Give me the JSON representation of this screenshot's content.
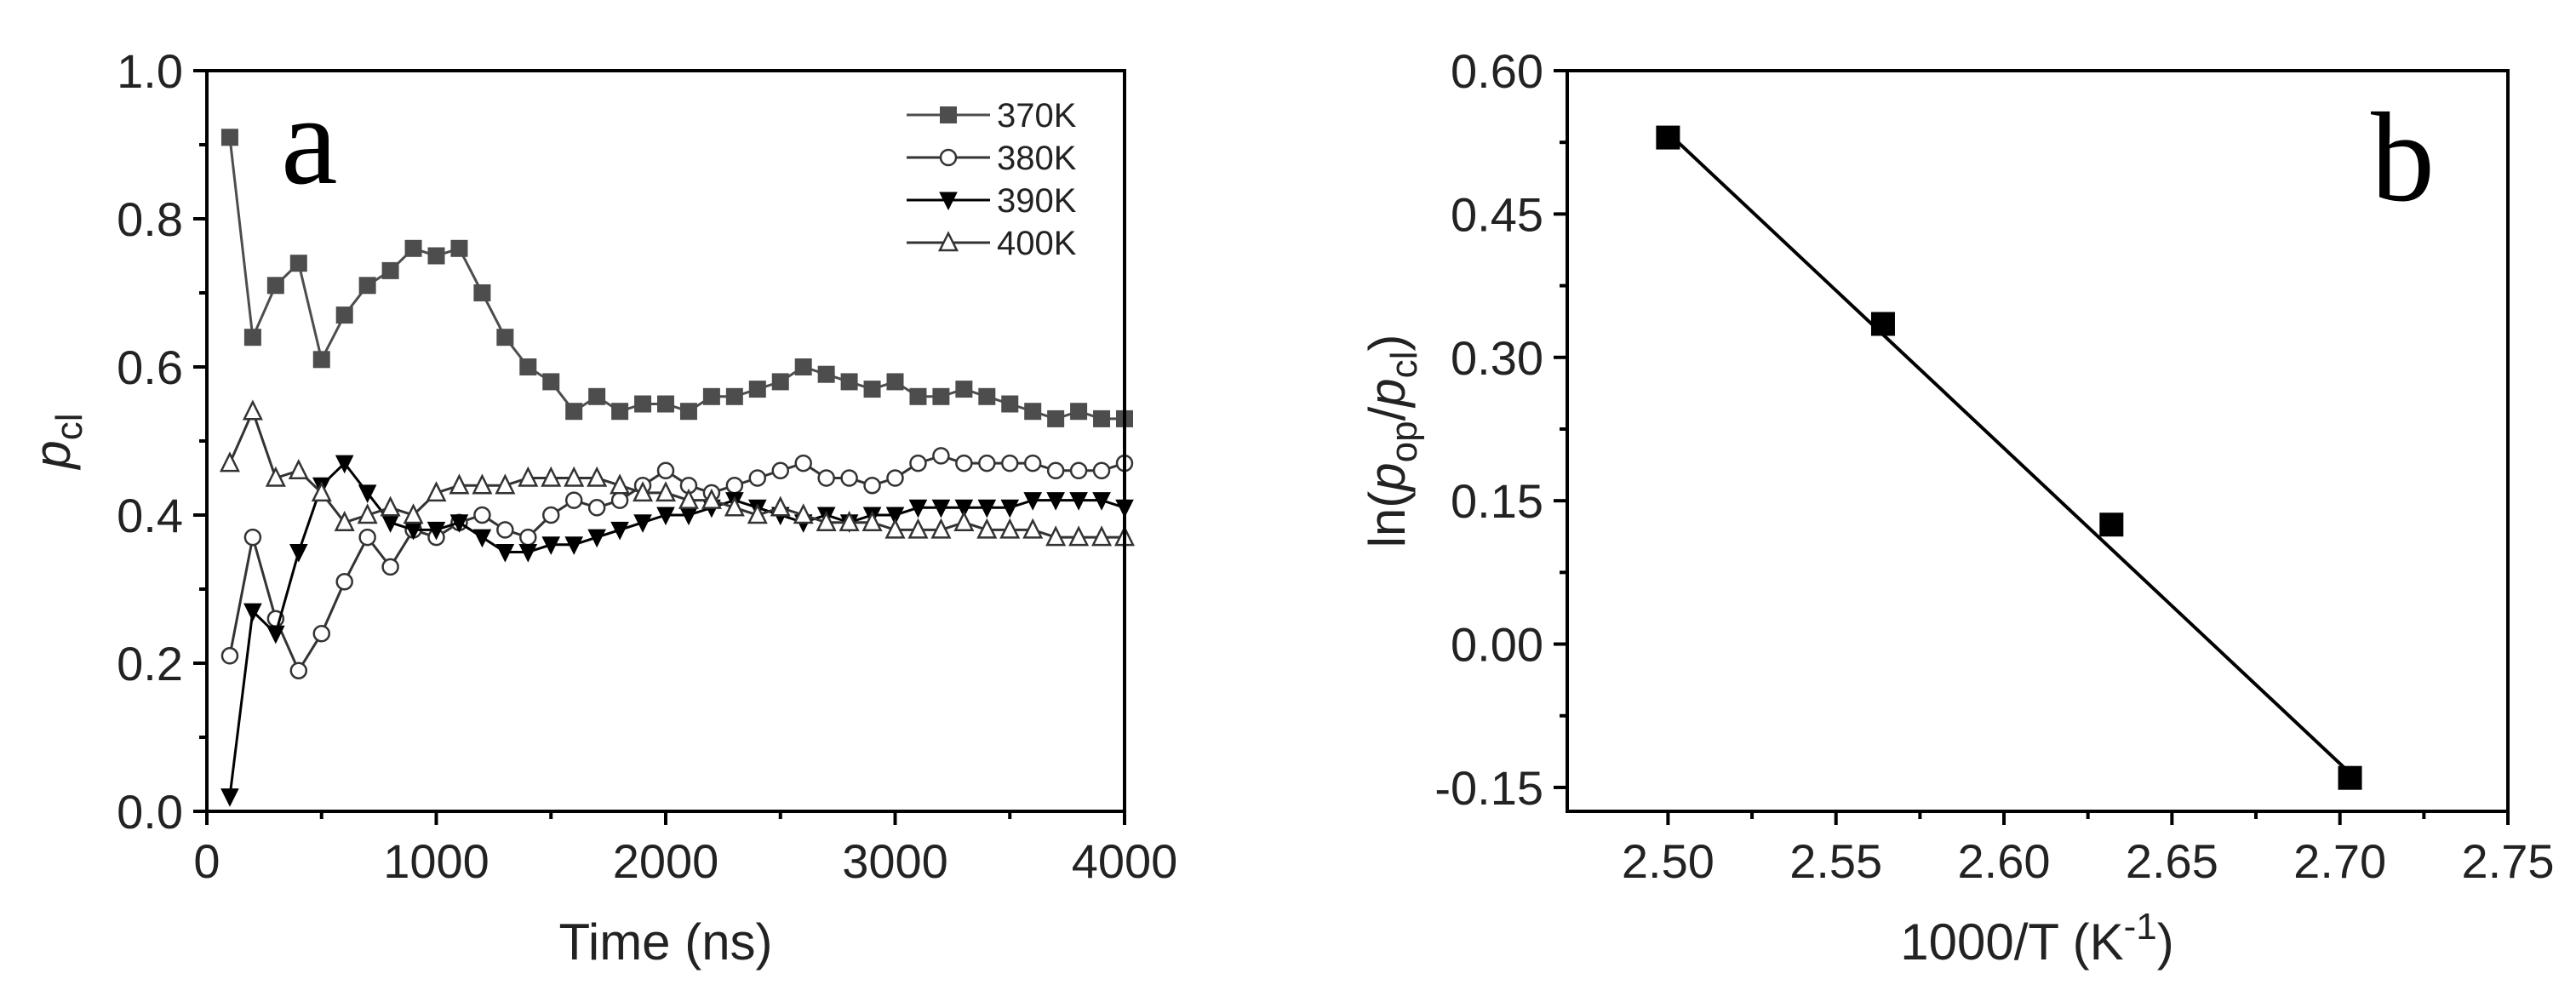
{
  "chart_data": [
    {
      "type": "line",
      "panel_label": "a",
      "xlabel": "Time (ns)",
      "ylabel_main": "p",
      "ylabel_sub": "cl",
      "xlim": [
        0,
        4000
      ],
      "ylim": [
        0.0,
        1.0
      ],
      "xticks": [
        0,
        1000,
        2000,
        3000,
        4000
      ],
      "xtick_labels": [
        "0",
        "1000",
        "2000",
        "3000",
        "4000"
      ],
      "yticks": [
        0.0,
        0.2,
        0.4,
        0.6,
        0.8,
        1.0
      ],
      "ytick_labels": [
        "0.0",
        "0.2",
        "0.4",
        "0.6",
        "0.8",
        "1.0"
      ],
      "legend_position": "top-right",
      "x": [
        100,
        200,
        300,
        400,
        500,
        600,
        700,
        800,
        900,
        1000,
        1100,
        1200,
        1300,
        1400,
        1500,
        1600,
        1700,
        1800,
        1900,
        2000,
        2100,
        2200,
        2300,
        2400,
        2500,
        2600,
        2700,
        2800,
        2900,
        3000,
        3100,
        3200,
        3300,
        3400,
        3500,
        3600,
        3700,
        3800,
        3900,
        4000
      ],
      "series": [
        {
          "name": "370K",
          "marker": "filled-square",
          "color": "#4d4d4d",
          "values": [
            0.91,
            0.64,
            0.71,
            0.74,
            0.61,
            0.67,
            0.71,
            0.73,
            0.76,
            0.75,
            0.76,
            0.7,
            0.64,
            0.6,
            0.58,
            0.54,
            0.56,
            0.54,
            0.55,
            0.55,
            0.54,
            0.56,
            0.56,
            0.57,
            0.58,
            0.6,
            0.59,
            0.58,
            0.57,
            0.58,
            0.56,
            0.56,
            0.57,
            0.56,
            0.55,
            0.54,
            0.53,
            0.54,
            0.53,
            0.53
          ]
        },
        {
          "name": "380K",
          "marker": "open-circle",
          "color": "#333333",
          "values": [
            0.21,
            0.37,
            0.26,
            0.19,
            0.24,
            0.31,
            0.37,
            0.33,
            0.38,
            0.37,
            0.39,
            0.4,
            0.38,
            0.37,
            0.4,
            0.42,
            0.41,
            0.42,
            0.44,
            0.46,
            0.44,
            0.43,
            0.44,
            0.45,
            0.46,
            0.47,
            0.45,
            0.45,
            0.44,
            0.45,
            0.47,
            0.48,
            0.47,
            0.47,
            0.47,
            0.47,
            0.46,
            0.46,
            0.46,
            0.47
          ]
        },
        {
          "name": "390K",
          "marker": "filled-down-triangle",
          "color": "#000000",
          "values": [
            0.02,
            0.27,
            0.24,
            0.35,
            0.44,
            0.47,
            0.43,
            0.39,
            0.38,
            0.38,
            0.39,
            0.37,
            0.35,
            0.35,
            0.36,
            0.36,
            0.37,
            0.38,
            0.39,
            0.4,
            0.4,
            0.41,
            0.42,
            0.41,
            0.4,
            0.39,
            0.4,
            0.39,
            0.4,
            0.4,
            0.41,
            0.41,
            0.41,
            0.41,
            0.41,
            0.42,
            0.42,
            0.42,
            0.42,
            0.41
          ]
        },
        {
          "name": "400K",
          "marker": "open-triangle",
          "color": "#333333",
          "values": [
            0.47,
            0.54,
            0.45,
            0.46,
            0.43,
            0.39,
            0.4,
            0.41,
            0.4,
            0.43,
            0.44,
            0.44,
            0.44,
            0.45,
            0.45,
            0.45,
            0.45,
            0.44,
            0.43,
            0.43,
            0.42,
            0.42,
            0.41,
            0.4,
            0.41,
            0.4,
            0.39,
            0.39,
            0.39,
            0.38,
            0.38,
            0.38,
            0.39,
            0.38,
            0.38,
            0.38,
            0.37,
            0.37,
            0.37,
            0.37
          ]
        }
      ]
    },
    {
      "type": "scatter",
      "panel_label": "b",
      "xlabel_main": "1000/T (K",
      "xlabel_sup": "-1",
      "xlabel_close": ")",
      "ylabel_parts": [
        "ln(",
        "p",
        "op",
        "/",
        "p",
        "cl",
        ")"
      ],
      "xlim": [
        2.47,
        2.75
      ],
      "ylim": [
        -0.175,
        0.6
      ],
      "xticks": [
        2.5,
        2.55,
        2.6,
        2.65,
        2.7,
        2.75
      ],
      "xtick_labels": [
        "2.50",
        "2.55",
        "2.60",
        "2.65",
        "2.70",
        "2.75"
      ],
      "yticks": [
        0.6,
        0.45,
        0.3,
        0.15,
        0.0,
        -0.15
      ],
      "ytick_labels": [
        "0.60",
        "0.45",
        "0.30",
        "0.15",
        "0.00",
        "-0.15"
      ],
      "points": {
        "x": [
          2.5,
          2.564,
          2.632,
          2.703
        ],
        "y": [
          0.53,
          0.335,
          0.125,
          -0.14
        ]
      },
      "fit_line": {
        "x": [
          2.5,
          2.703
        ],
        "y": [
          0.535,
          -0.135
        ]
      }
    }
  ]
}
